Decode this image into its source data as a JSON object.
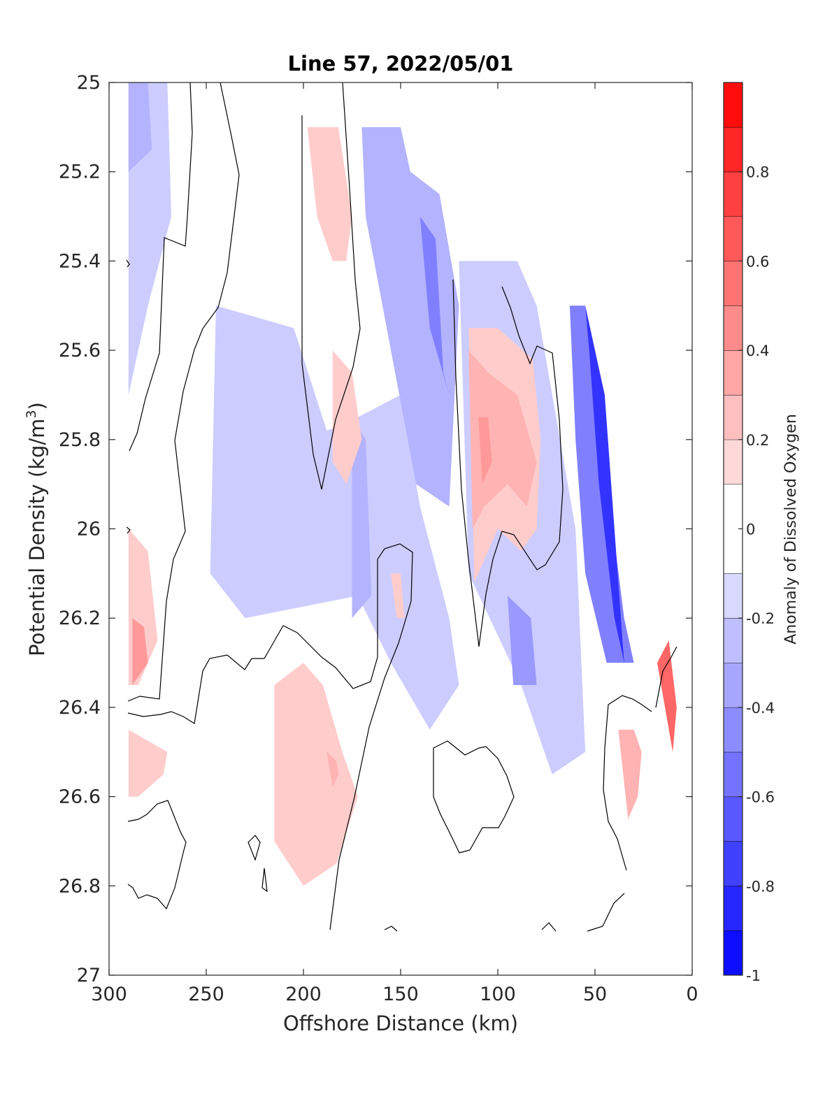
{
  "chart_data": {
    "type": "contour",
    "title": "Line 57, 2022/05/01",
    "xlabel": "Offshore Distance (km)",
    "ylabel_main": "Potential Density (kg/m",
    "ylabel_sup": "3",
    "ylabel_close": ")",
    "xlim": [
      300,
      0
    ],
    "x_reversed": true,
    "ylim": [
      25,
      27
    ],
    "y_reversed": true,
    "xticks": [
      300,
      250,
      200,
      150,
      100,
      50,
      0
    ],
    "yticks": [
      25,
      25.2,
      25.4,
      25.6,
      25.8,
      26,
      26.2,
      26.4,
      26.6,
      26.8,
      27
    ],
    "colorbar": {
      "label": "Anomaly of Dissolved Oxygen",
      "range": [
        -1,
        1
      ],
      "levels": [
        -1,
        -0.9,
        -0.8,
        -0.7,
        -0.6,
        -0.5,
        -0.4,
        -0.3,
        -0.2,
        -0.1,
        0.1,
        0.2,
        0.3,
        0.4,
        0.5,
        0.6,
        0.7,
        0.8,
        0.9,
        1.0
      ],
      "ticks": [
        -1,
        -0.8,
        -0.6,
        -0.4,
        -0.2,
        0,
        0.2,
        0.4,
        0.6,
        0.8
      ],
      "colormap": "blue-white-red"
    },
    "zero_contour": "black",
    "regions": [
      {
        "x": [
          290,
          270,
          268,
          280,
          285,
          290
        ],
        "y": [
          25.0,
          25.0,
          25.3,
          25.5,
          25.6,
          25.7
        ],
        "value": -0.2
      },
      {
        "x": [
          290,
          280,
          278,
          290
        ],
        "y": [
          25.0,
          25.0,
          25.15,
          25.2
        ],
        "value": -0.3
      },
      {
        "x": [
          245,
          205,
          188,
          172,
          150,
          140,
          125,
          120,
          135,
          155,
          172,
          230,
          248
        ],
        "y": [
          25.5,
          25.55,
          25.78,
          25.75,
          25.7,
          25.95,
          26.2,
          26.35,
          26.45,
          26.3,
          26.15,
          26.2,
          26.1
        ],
        "value": -0.2
      },
      {
        "x": [
          175,
          168,
          165,
          175
        ],
        "y": [
          25.75,
          25.8,
          26.15,
          26.2
        ],
        "value": -0.3
      },
      {
        "x": [
          170,
          150,
          145,
          130,
          120,
          125,
          142,
          155,
          168
        ],
        "y": [
          25.1,
          25.1,
          25.2,
          25.25,
          25.5,
          25.95,
          25.9,
          25.6,
          25.3
        ],
        "value": -0.3
      },
      {
        "x": [
          140,
          132,
          130,
          128,
          125,
          135
        ],
        "y": [
          25.3,
          25.35,
          25.5,
          25.65,
          25.7,
          25.55
        ],
        "value": -0.5
      },
      {
        "x": [
          120,
          90,
          80,
          60,
          55,
          72,
          88,
          115
        ],
        "y": [
          25.4,
          25.4,
          25.5,
          26.0,
          26.5,
          26.55,
          26.35,
          26.1
        ],
        "value": -0.2
      },
      {
        "x": [
          95,
          83,
          80,
          92
        ],
        "y": [
          26.15,
          26.2,
          26.35,
          26.35
        ],
        "value": -0.4
      },
      {
        "x": [
          63,
          55,
          35,
          30,
          44,
          55,
          60
        ],
        "y": [
          25.5,
          25.5,
          26.2,
          26.3,
          26.3,
          26.1,
          25.8
        ],
        "value": -0.5
      },
      {
        "x": [
          55,
          45,
          40,
          35,
          40,
          48,
          53
        ],
        "y": [
          25.5,
          25.7,
          26.0,
          26.3,
          26.2,
          25.9,
          25.6
        ],
        "value": -0.8
      },
      {
        "x": [
          290,
          280,
          275,
          285,
          290
        ],
        "y": [
          26.0,
          26.05,
          26.25,
          26.35,
          26.35
        ],
        "value": 0.2
      },
      {
        "x": [
          288,
          282,
          280,
          288
        ],
        "y": [
          26.2,
          26.22,
          26.3,
          26.35
        ],
        "value": 0.4
      },
      {
        "x": [
          290,
          270,
          272,
          285,
          290
        ],
        "y": [
          26.45,
          26.5,
          26.55,
          26.6,
          26.6
        ],
        "value": 0.2
      },
      {
        "x": [
          215,
          200,
          190,
          180,
          172,
          183,
          200,
          215
        ],
        "y": [
          26.35,
          26.3,
          26.35,
          26.5,
          26.6,
          26.75,
          26.8,
          26.7
        ],
        "value": 0.2
      },
      {
        "x": [
          188,
          183,
          182,
          185
        ],
        "y": [
          26.5,
          26.52,
          26.55,
          26.58
        ],
        "value": 0.3
      },
      {
        "x": [
          198,
          182,
          175,
          178,
          185,
          193
        ],
        "y": [
          25.1,
          25.1,
          25.3,
          25.4,
          25.4,
          25.3
        ],
        "value": 0.2
      },
      {
        "x": [
          185,
          175,
          170,
          178,
          185
        ],
        "y": [
          25.6,
          25.65,
          25.8,
          25.9,
          25.85
        ],
        "value": 0.2
      },
      {
        "x": [
          155,
          150,
          148,
          152
        ],
        "y": [
          26.1,
          26.1,
          26.2,
          26.2
        ],
        "value": 0.2
      },
      {
        "x": [
          115,
          100,
          82,
          78,
          80,
          88,
          100,
          112
        ],
        "y": [
          25.55,
          25.55,
          25.62,
          25.8,
          26.0,
          26.05,
          26.0,
          26.12
        ],
        "value": 0.2
      },
      {
        "x": [
          115,
          105,
          90,
          80,
          85,
          95,
          107,
          113
        ],
        "y": [
          25.6,
          25.65,
          25.7,
          25.85,
          25.95,
          25.9,
          25.95,
          26.0
        ],
        "value": 0.3
      },
      {
        "x": [
          110,
          105,
          103,
          108
        ],
        "y": [
          25.75,
          25.75,
          25.85,
          25.9
        ],
        "value": 0.4
      },
      {
        "x": [
          38,
          30,
          26,
          28,
          33
        ],
        "y": [
          26.45,
          26.45,
          26.5,
          26.6,
          26.65
        ],
        "value": 0.3
      },
      {
        "x": [
          18,
          12,
          8,
          10,
          14
        ],
        "y": [
          26.3,
          26.25,
          26.4,
          26.5,
          26.4
        ],
        "value": 0.6
      }
    ]
  }
}
